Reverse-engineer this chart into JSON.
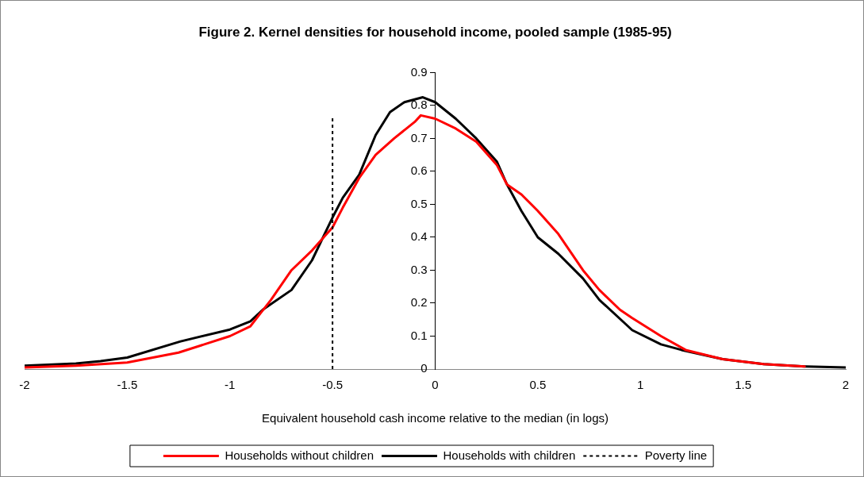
{
  "chart_data": {
    "type": "line",
    "title": "Figure 2. Kernel densities for household income, pooled sample (1985-95)",
    "xlabel": "Equivalent household cash income relative to the median (in logs)",
    "xlim": [
      -2,
      2
    ],
    "xticks": [
      -2,
      -1.5,
      -1,
      -0.5,
      0,
      0.5,
      1,
      1.5,
      2
    ],
    "ylim": [
      0,
      0.9
    ],
    "yticks": [
      0,
      0.1,
      0.2,
      0.3,
      0.4,
      0.5,
      0.6,
      0.7,
      0.8,
      0.9
    ],
    "grid": false,
    "legend": "bottom",
    "marker": "none",
    "series": [
      {
        "name": "Households without children",
        "color": "#ff0000",
        "x": [
          -2,
          -1.75,
          -1.5,
          -1.25,
          -1,
          -0.9,
          -0.85,
          -0.8,
          -0.7,
          -0.6,
          -0.5,
          -0.45,
          -0.37,
          -0.29,
          -0.2,
          -0.1,
          -0.07,
          0,
          0.1,
          0.2,
          0.3,
          0.35,
          0.42,
          0.5,
          0.6,
          0.72,
          0.8,
          0.9,
          0.96,
          1.1,
          1.22,
          1.4,
          1.6,
          1.8
        ],
        "values": [
          0.005,
          0.01,
          0.02,
          0.05,
          0.1,
          0.13,
          0.17,
          0.21,
          0.3,
          0.36,
          0.43,
          0.49,
          0.58,
          0.65,
          0.7,
          0.75,
          0.77,
          0.76,
          0.73,
          0.69,
          0.62,
          0.56,
          0.53,
          0.48,
          0.41,
          0.3,
          0.24,
          0.18,
          0.155,
          0.1,
          0.058,
          0.03,
          0.015,
          0.008
        ]
      },
      {
        "name": "Households with children",
        "color": "#000000",
        "x": [
          -2,
          -1.75,
          -1.63,
          -1.5,
          -1.24,
          -1,
          -0.9,
          -0.84,
          -0.7,
          -0.6,
          -0.5,
          -0.45,
          -0.37,
          -0.29,
          -0.22,
          -0.15,
          -0.06,
          0,
          0.1,
          0.2,
          0.3,
          0.35,
          0.42,
          0.5,
          0.6,
          0.72,
          0.8,
          0.96,
          1.1,
          1.2,
          1.4,
          1.6,
          1.8,
          2
        ],
        "values": [
          0.01,
          0.017,
          0.024,
          0.035,
          0.084,
          0.12,
          0.145,
          0.18,
          0.24,
          0.33,
          0.46,
          0.52,
          0.59,
          0.71,
          0.78,
          0.81,
          0.825,
          0.81,
          0.76,
          0.7,
          0.63,
          0.56,
          0.48,
          0.4,
          0.35,
          0.275,
          0.21,
          0.118,
          0.075,
          0.058,
          0.03,
          0.015,
          0.008,
          0.005
        ]
      }
    ],
    "ref_lines": [
      {
        "axis": "x",
        "value": -0.5,
        "label": "Poverty line",
        "color": "#000000",
        "line_style": "dashed"
      }
    ],
    "line_style": "solid"
  }
}
